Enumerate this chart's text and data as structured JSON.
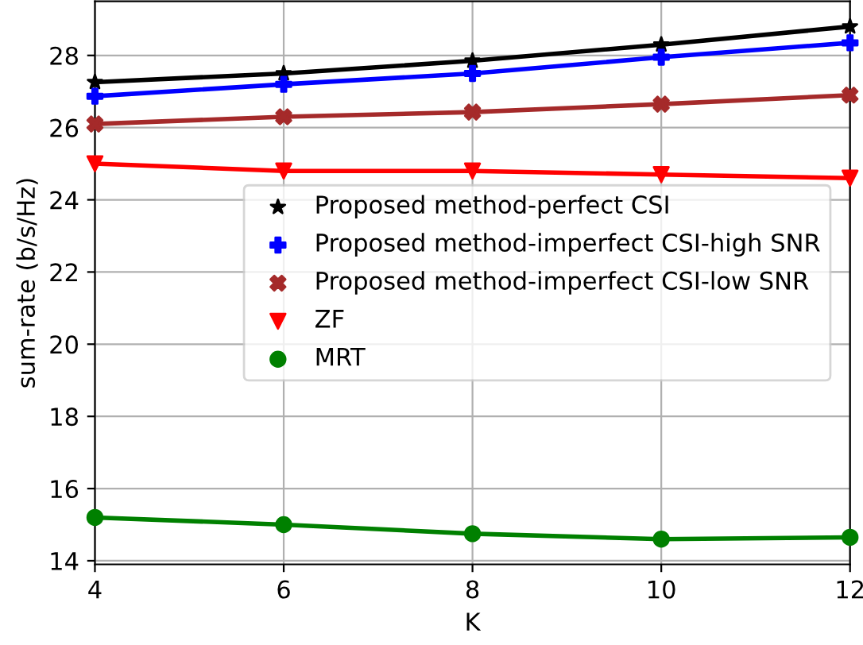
{
  "chart_data": {
    "type": "line",
    "xlabel": "K",
    "ylabel": "sum-rate (b/s/Hz)",
    "x": [
      4,
      6,
      8,
      10,
      12
    ],
    "series": [
      {
        "name": "Proposed method-perfect CSI",
        "color": "#000000",
        "marker": "star",
        "values": [
          27.26,
          27.5,
          27.85,
          28.3,
          28.8
        ]
      },
      {
        "name": "Proposed method-imperfect CSI-high SNR",
        "color": "#0000ff",
        "marker": "plus",
        "values": [
          26.87,
          27.2,
          27.5,
          27.95,
          28.35
        ]
      },
      {
        "name": "Proposed method-imperfect CSI-low SNR",
        "color": "#a52a2a",
        "marker": "cross",
        "values": [
          26.1,
          26.3,
          26.43,
          26.65,
          26.9
        ]
      },
      {
        "name": "ZF",
        "color": "#ff0000",
        "marker": "triangle_down",
        "values": [
          25.0,
          24.8,
          24.8,
          24.7,
          24.6
        ]
      },
      {
        "name": "MRT",
        "color": "#008000",
        "marker": "circle",
        "values": [
          15.2,
          15.0,
          14.75,
          14.6,
          14.65
        ]
      }
    ],
    "xlim": [
      4,
      12
    ],
    "xticks": [
      4,
      6,
      8,
      10,
      12
    ],
    "ylim": [
      13.9,
      29.5
    ],
    "yticks": [
      14,
      16,
      18,
      20,
      22,
      24,
      26,
      28
    ],
    "grid": true,
    "legend": "center right",
    "line_style": "solid"
  }
}
